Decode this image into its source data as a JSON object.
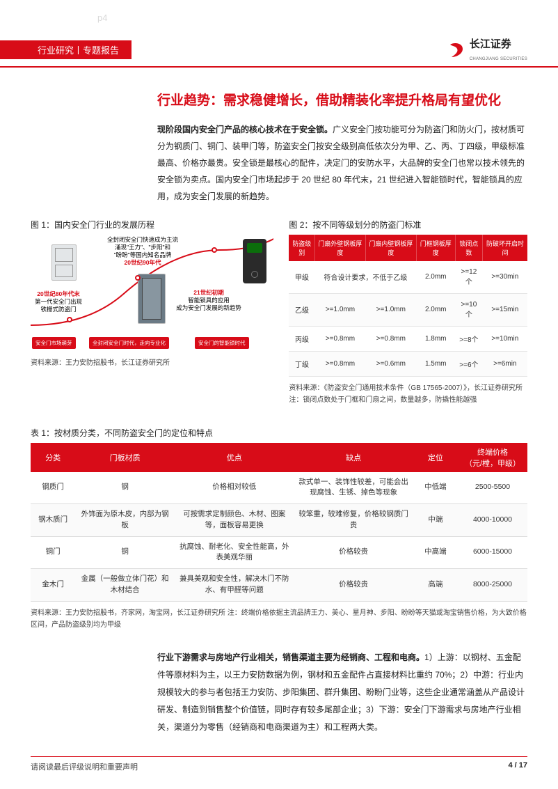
{
  "page_label": "p4",
  "header": {
    "category": "行业研究丨专题报告",
    "brand_cn": "长江证券",
    "brand_en": "CHANGJIANG SECURITIES"
  },
  "section_title": "行业趋势：需求稳健增长，借助精装化率提升格局有望优化",
  "lead": {
    "bold": "现阶段国内安全门产品的核心技术在于安全锁。",
    "rest": "广义安全门按功能可分为防盗门和防火门，按材质可分为钢质门、铜门、装甲门等，防盗安全门按安全级别高低依次分为甲、乙、丙、丁四级，甲级标准最高、价格亦最贵。安全锁是最核心的配件，决定门的安防水平，大品牌的安全门也常以技术领先的安全锁为卖点。国内安全门市场起步于 20 世纪 80 年代末，21 世纪进入智能锁时代，智能锁具的应用，成为安全门发展的新趋势。"
  },
  "fig1": {
    "caption": "图 1：国内安全门行业的发展历程",
    "source": "资料来源：王力安防招股书，长江证券研究所",
    "labels": {
      "era1_red": "20世纪80年代末",
      "era1_sub": "第一代安全门出现\n铁栅式防盗门",
      "era2_top1": "全封闭安全门快速成为主流",
      "era2_top2": "涌现\"王力\"、\"步阳\"和\n\"盼盼\"等国内知名品牌",
      "era2_red": "20世纪90年代",
      "era3_red": "21世纪初期",
      "era3_sub": "智能锁具的应用\n成为安全门发展的新趋势"
    },
    "pills": [
      "安全门市场萌芽",
      "全封闭安全门时代，走向专业化",
      "安全门的智能锁时代"
    ],
    "colors": {
      "red": "#d80c18",
      "door_gray": "#d4d8db",
      "door_dark": "#3c4a52"
    }
  },
  "fig2": {
    "caption": "图 2：按不同等级划分的防盗门标准",
    "source": "资料来源：《防盗安全门通用技术条件（GB 17565-2007）》，长江证券研究所 注：锁闭点数处于门框和门扇之间，数量越多，防撬性能越强",
    "headers": [
      "防盗级别",
      "门扇外壁钢板厚度",
      "门扇内壁钢板厚度",
      "门框钢板厚度",
      "锁闭点数",
      "防破坏开启时间"
    ],
    "rows": [
      [
        "甲级",
        "符合设计要求，不低于乙级",
        "",
        "2.0mm",
        ">=12个",
        ">=30min"
      ],
      [
        "乙级",
        ">=1.0mm",
        ">=1.0mm",
        "2.0mm",
        ">=10个",
        ">=15min"
      ],
      [
        "丙级",
        ">=0.8mm",
        ">=0.8mm",
        "1.8mm",
        ">=8个",
        ">=10min"
      ],
      [
        "丁级",
        ">=0.8mm",
        ">=0.6mm",
        "1.5mm",
        ">=6个",
        ">=6min"
      ]
    ]
  },
  "table1": {
    "caption": "表 1：按材质分类，不同防盗安全门的定位和特点",
    "headers": [
      "分类",
      "门板材质",
      "优点",
      "缺点",
      "定位",
      "终端价格\n（元/樘，甲级）"
    ],
    "rows": [
      [
        "钢质门",
        "钢",
        "价格相对较低",
        "款式单一、装饰性较差，可能会出现腐蚀、生锈、掉色等现象",
        "中低端",
        "2500-5500"
      ],
      [
        "钢木质门",
        "外饰面为原木皮，内部为钢板",
        "可按需求定制颜色、木材、图案等，面板容易更换",
        "较笨重，较难修复，价格较钢质门贵",
        "中端",
        "4000-10000"
      ],
      [
        "铜门",
        "铜",
        "抗腐蚀、耐老化、安全性能高，外表美观华丽",
        "价格较贵",
        "中高端",
        "6000-15000"
      ],
      [
        "金木门",
        "金属（一般做立体门花）和木材结合",
        "兼具美观和安全性，解决木门不防水、有甲醛等问题",
        "价格较贵",
        "高端",
        "8000-25000"
      ]
    ],
    "source": "资料来源：王力安防招股书，齐家网，淘宝网，长江证券研究所 注：终端价格依据主流品牌王力、美心、星月神、步阳、盼盼等天猫或淘宝销售价格，为大致价格区间，产品防盗级别均为甲级"
  },
  "body": "行业下游需求与房地产行业相关，销售渠道主要为经销商、工程和电商。1）上游：以钢材、五金配件等原材料为主，以王力安防数据为例，钢材和五金配件占直接材料比重约 70%；2）中游：行业内规模较大的参与者包括王力安防、步阳集团、群升集团、盼盼门业等，这些企业通常涵盖从产品设计研发、制造到销售整个价值链，同时存有较多尾部企业；3）下游：安全门下游需求与房地产行业相关，渠道分为零售（经销商和电商渠道为主）和工程两大类。",
  "body_bold": "行业下游需求与房地产行业相关，销售渠道主要为经销商、工程和电商。",
  "footer": {
    "note": "请阅读最后评级说明和重要声明",
    "page": "4 / 17"
  },
  "colors": {
    "accent": "#d80c18"
  }
}
